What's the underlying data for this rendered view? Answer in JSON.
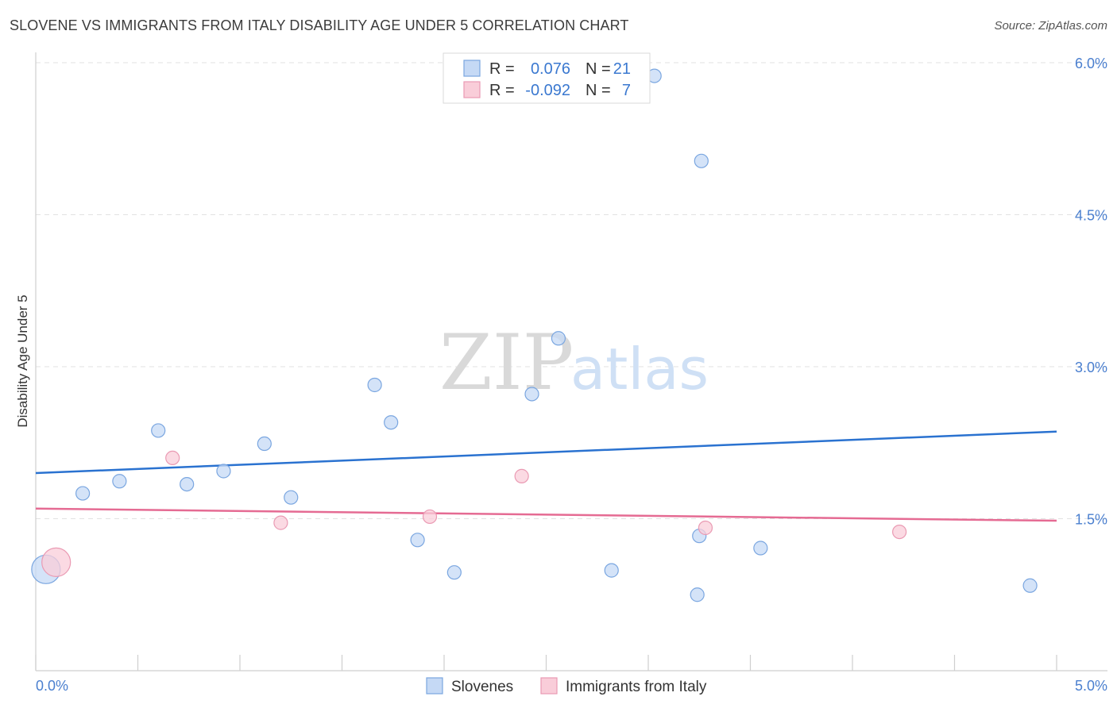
{
  "header": {
    "title": "SLOVENE VS IMMIGRANTS FROM ITALY DISABILITY AGE UNDER 5 CORRELATION CHART",
    "source": "Source: ZipAtlas.com"
  },
  "watermark": {
    "zip": "ZIP",
    "atlas": "atlas"
  },
  "colors": {
    "slovenes_fill": "#c5d9f5",
    "slovenes_stroke": "#7aa6e0",
    "slovenes_line": "#2a72d0",
    "italy_fill": "#f9cdd9",
    "italy_stroke": "#ea9ab3",
    "italy_line": "#e56b93",
    "tick_label": "#4a7fcf",
    "grid": "#e2e2e2"
  },
  "legend_stats": [
    {
      "r_label": "R =",
      "r_value": "0.076",
      "n_label": "N =",
      "n_value": "21"
    },
    {
      "r_label": "R =",
      "r_value": "-0.092",
      "n_label": "N =",
      "n_value": "7"
    }
  ],
  "chart_data": {
    "type": "scatter",
    "title": "SLOVENE VS IMMIGRANTS FROM ITALY DISABILITY AGE UNDER 5 CORRELATION CHART",
    "xlabel": "",
    "ylabel": "Disability Age Under 5",
    "xlim": [
      0,
      5.0
    ],
    "ylim": [
      0,
      6.0
    ],
    "x_tick_labels": [
      "0.0%",
      "5.0%"
    ],
    "y_ticks": [
      1.5,
      3.0,
      4.5,
      6.0
    ],
    "y_tick_labels": [
      "1.5%",
      "3.0%",
      "4.5%",
      "6.0%"
    ],
    "legend": [
      "Slovenes",
      "Immigrants from Italy"
    ],
    "series": [
      {
        "name": "Slovenes",
        "points": [
          {
            "x": 0.05,
            "y": 1.0,
            "big": true
          },
          {
            "x": 0.23,
            "y": 1.75
          },
          {
            "x": 0.41,
            "y": 1.87
          },
          {
            "x": 0.6,
            "y": 2.37
          },
          {
            "x": 0.74,
            "y": 1.84
          },
          {
            "x": 0.92,
            "y": 1.97
          },
          {
            "x": 1.12,
            "y": 2.24
          },
          {
            "x": 1.25,
            "y": 1.71
          },
          {
            "x": 1.66,
            "y": 2.82
          },
          {
            "x": 1.74,
            "y": 2.45
          },
          {
            "x": 1.87,
            "y": 1.29
          },
          {
            "x": 2.05,
            "y": 0.97
          },
          {
            "x": 2.43,
            "y": 2.73
          },
          {
            "x": 2.56,
            "y": 3.28
          },
          {
            "x": 2.82,
            "y": 0.99
          },
          {
            "x": 3.25,
            "y": 1.33
          },
          {
            "x": 3.03,
            "y": 5.87
          },
          {
            "x": 3.26,
            "y": 5.03
          },
          {
            "x": 3.24,
            "y": 0.75
          },
          {
            "x": 3.55,
            "y": 1.21
          },
          {
            "x": 4.87,
            "y": 0.84
          }
        ],
        "trend": {
          "x": [
            0,
            5.0
          ],
          "y": [
            1.95,
            2.36
          ]
        }
      },
      {
        "name": "Immigrants from Italy",
        "points": [
          {
            "x": 0.1,
            "y": 1.07,
            "big": true
          },
          {
            "x": 0.67,
            "y": 2.1
          },
          {
            "x": 1.2,
            "y": 1.46
          },
          {
            "x": 1.93,
            "y": 1.52
          },
          {
            "x": 2.38,
            "y": 1.92
          },
          {
            "x": 3.28,
            "y": 1.41
          },
          {
            "x": 4.23,
            "y": 1.37
          }
        ],
        "trend": {
          "x": [
            0,
            5.0
          ],
          "y": [
            1.6,
            1.48
          ]
        }
      }
    ]
  }
}
